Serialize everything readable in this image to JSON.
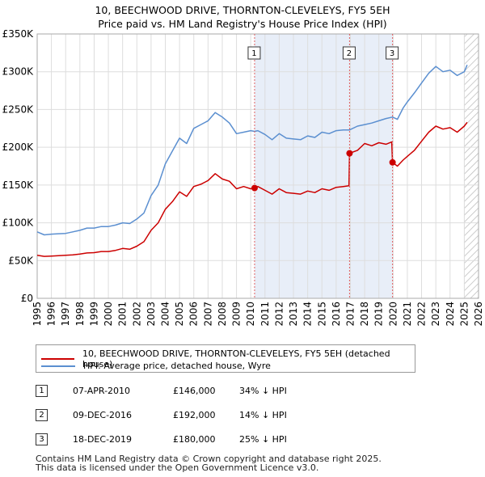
{
  "chart_data": {
    "type": "line",
    "title": "10, BEECHWOOD DRIVE, THORNTON-CLEVELEYS, FY5 5EH",
    "subtitle": "Price paid vs. HM Land Registry's House Price Index (HPI)",
    "xlabel": "",
    "ylabel": "",
    "xlim": [
      1995,
      2026
    ],
    "ylim": [
      0,
      350000
    ],
    "x_ticks": [
      "1995",
      "1996",
      "1997",
      "1998",
      "1999",
      "2000",
      "2001",
      "2002",
      "2003",
      "2004",
      "2005",
      "2006",
      "2007",
      "2008",
      "2009",
      "2010",
      "2011",
      "2012",
      "2013",
      "2014",
      "2015",
      "2016",
      "2017",
      "2018",
      "2019",
      "2020",
      "2021",
      "2022",
      "2023",
      "2024",
      "2025",
      "2026"
    ],
    "y_ticks": [
      {
        "value": 0,
        "label": "£0"
      },
      {
        "value": 50000,
        "label": "£50K"
      },
      {
        "value": 100000,
        "label": "£100K"
      },
      {
        "value": 150000,
        "label": "£150K"
      },
      {
        "value": 200000,
        "label": "£200K"
      },
      {
        "value": 250000,
        "label": "£250K"
      },
      {
        "value": 300000,
        "label": "£300K"
      },
      {
        "value": 350000,
        "label": "£350K"
      }
    ],
    "grid": true,
    "shaded_periods": [
      {
        "from": 2010.27,
        "to": 2019.96,
        "color": "#e8eef8"
      },
      {
        "from": 2025.0,
        "to": 2026.0,
        "hatched": true
      }
    ],
    "series": [
      {
        "name": "10, BEECHWOOD DRIVE, THORNTON-CLEVELEYS, FY5 5EH (detached house)",
        "color": "#cc0000",
        "points": [
          [
            1995.0,
            57000
          ],
          [
            1995.5,
            55500
          ],
          [
            1996.0,
            56000
          ],
          [
            1996.5,
            56500
          ],
          [
            1997.0,
            57000
          ],
          [
            1997.5,
            57500
          ],
          [
            1998.0,
            58500
          ],
          [
            1998.5,
            60000
          ],
          [
            1999.0,
            60500
          ],
          [
            1999.5,
            62000
          ],
          [
            2000.0,
            62000
          ],
          [
            2000.5,
            63500
          ],
          [
            2001.0,
            66000
          ],
          [
            2001.5,
            65000
          ],
          [
            2002.0,
            69000
          ],
          [
            2002.5,
            75000
          ],
          [
            2003.0,
            90000
          ],
          [
            2003.5,
            100000
          ],
          [
            2004.0,
            118000
          ],
          [
            2004.5,
            128000
          ],
          [
            2005.0,
            141000
          ],
          [
            2005.5,
            135000
          ],
          [
            2006.0,
            148000
          ],
          [
            2006.5,
            151000
          ],
          [
            2007.0,
            156000
          ],
          [
            2007.5,
            165000
          ],
          [
            2008.0,
            158000
          ],
          [
            2008.5,
            155000
          ],
          [
            2009.0,
            145000
          ],
          [
            2009.5,
            148000
          ],
          [
            2010.0,
            145000
          ],
          [
            2010.27,
            146000
          ],
          [
            2010.5,
            148000
          ],
          [
            2011.0,
            143000
          ],
          [
            2011.5,
            138000
          ],
          [
            2012.0,
            145000
          ],
          [
            2012.5,
            140000
          ],
          [
            2013.0,
            139000
          ],
          [
            2013.5,
            138000
          ],
          [
            2014.0,
            142000
          ],
          [
            2014.5,
            140000
          ],
          [
            2015.0,
            145000
          ],
          [
            2015.5,
            143000
          ],
          [
            2016.0,
            147000
          ],
          [
            2016.5,
            148000
          ],
          [
            2016.9,
            149000
          ],
          [
            2016.94,
            192000
          ],
          [
            2017.5,
            196000
          ],
          [
            2018.0,
            205000
          ],
          [
            2018.5,
            202000
          ],
          [
            2019.0,
            206000
          ],
          [
            2019.5,
            204000
          ],
          [
            2019.9,
            207000
          ],
          [
            2019.96,
            180000
          ],
          [
            2020.3,
            175000
          ],
          [
            2020.7,
            183000
          ],
          [
            2021.0,
            188000
          ],
          [
            2021.5,
            196000
          ],
          [
            2022.0,
            208000
          ],
          [
            2022.5,
            220000
          ],
          [
            2023.0,
            228000
          ],
          [
            2023.5,
            224000
          ],
          [
            2024.0,
            226000
          ],
          [
            2024.5,
            220000
          ],
          [
            2025.0,
            228000
          ],
          [
            2025.2,
            233000
          ]
        ]
      },
      {
        "name": "HPI: Average price, detached house, Wyre",
        "color": "#5b8fd0",
        "points": [
          [
            1995.0,
            88000
          ],
          [
            1995.5,
            84000
          ],
          [
            1996.0,
            85000
          ],
          [
            1996.5,
            85500
          ],
          [
            1997.0,
            86000
          ],
          [
            1997.5,
            88000
          ],
          [
            1998.0,
            90000
          ],
          [
            1998.5,
            93000
          ],
          [
            1999.0,
            93000
          ],
          [
            1999.5,
            95000
          ],
          [
            2000.0,
            95000
          ],
          [
            2000.5,
            97000
          ],
          [
            2001.0,
            100000
          ],
          [
            2001.5,
            99000
          ],
          [
            2002.0,
            105000
          ],
          [
            2002.5,
            113000
          ],
          [
            2003.0,
            136000
          ],
          [
            2003.5,
            150000
          ],
          [
            2004.0,
            178000
          ],
          [
            2004.5,
            195000
          ],
          [
            2005.0,
            212000
          ],
          [
            2005.5,
            205000
          ],
          [
            2006.0,
            225000
          ],
          [
            2006.5,
            230000
          ],
          [
            2007.0,
            235000
          ],
          [
            2007.5,
            246000
          ],
          [
            2008.0,
            240000
          ],
          [
            2008.5,
            232000
          ],
          [
            2009.0,
            218000
          ],
          [
            2009.5,
            220000
          ],
          [
            2010.0,
            222000
          ],
          [
            2010.27,
            221000
          ],
          [
            2010.5,
            222000
          ],
          [
            2011.0,
            217000
          ],
          [
            2011.5,
            210000
          ],
          [
            2012.0,
            218000
          ],
          [
            2012.5,
            212000
          ],
          [
            2013.0,
            211000
          ],
          [
            2013.5,
            210000
          ],
          [
            2014.0,
            215000
          ],
          [
            2014.5,
            213000
          ],
          [
            2015.0,
            220000
          ],
          [
            2015.5,
            218000
          ],
          [
            2016.0,
            222000
          ],
          [
            2016.5,
            223000
          ],
          [
            2016.94,
            223000
          ],
          [
            2017.5,
            228000
          ],
          [
            2018.0,
            230000
          ],
          [
            2018.5,
            232000
          ],
          [
            2019.0,
            235000
          ],
          [
            2019.5,
            238000
          ],
          [
            2019.96,
            240000
          ],
          [
            2020.3,
            237000
          ],
          [
            2020.7,
            252000
          ],
          [
            2021.0,
            260000
          ],
          [
            2021.5,
            272000
          ],
          [
            2022.0,
            285000
          ],
          [
            2022.5,
            298000
          ],
          [
            2023.0,
            307000
          ],
          [
            2023.5,
            300000
          ],
          [
            2024.0,
            302000
          ],
          [
            2024.5,
            295000
          ],
          [
            2025.0,
            300000
          ],
          [
            2025.2,
            309000
          ]
        ]
      }
    ],
    "annotations": [
      {
        "label": "1",
        "x": 2010.27,
        "value": 146000
      },
      {
        "label": "2",
        "x": 2016.94,
        "value": 192000
      },
      {
        "label": "3",
        "x": 2019.96,
        "value": 180000
      }
    ]
  },
  "legend": {
    "items": [
      {
        "label": "10, BEECHWOOD DRIVE, THORNTON-CLEVELEYS, FY5 5EH (detached house)",
        "color": "#cc0000"
      },
      {
        "label": "HPI: Average price, detached house, Wyre",
        "color": "#5b8fd0"
      }
    ]
  },
  "transactions": [
    {
      "num": "1",
      "date": "07-APR-2010",
      "price": "£146,000",
      "hpi": "34% ↓ HPI"
    },
    {
      "num": "2",
      "date": "09-DEC-2016",
      "price": "£192,000",
      "hpi": "14% ↓ HPI"
    },
    {
      "num": "3",
      "date": "18-DEC-2019",
      "price": "£180,000",
      "hpi": "25% ↓ HPI"
    }
  ],
  "footer": {
    "line1": "Contains HM Land Registry data © Crown copyright and database right 2025.",
    "line2": "This data is licensed under the Open Government Licence v3.0."
  }
}
